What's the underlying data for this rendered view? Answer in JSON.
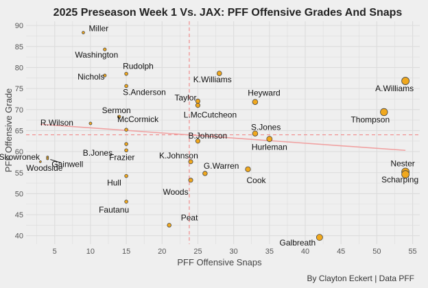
{
  "chart_data": {
    "type": "scatter",
    "title": "2025 Preseason Week 1 Vs. JAX: PFF Offensive Grades And Snaps",
    "xlabel": "PFF Offensive Snaps",
    "ylabel": "PFF Offensive Grade",
    "caption": "By Clayton Eckert | Data PFF",
    "xlim": [
      1,
      56
    ],
    "ylim": [
      38,
      91
    ],
    "xticks": [
      5,
      10,
      15,
      20,
      25,
      30,
      35,
      40,
      45,
      50,
      55
    ],
    "yticks": [
      40,
      45,
      50,
      55,
      60,
      65,
      70,
      75,
      80,
      85,
      90
    ],
    "grid": true,
    "mean_x": 23.8,
    "mean_y": 64.0,
    "trend_line": {
      "x": [
        3,
        54
      ],
      "y": [
        66.5,
        60.3
      ]
    },
    "colors": {
      "point_fill": "#f0a81e",
      "point_stroke": "#444444",
      "reference_line": "#f08a8a",
      "trend_line": "#f0a0a0",
      "grid": "#dcdcdc",
      "background": "#efefef"
    },
    "points": [
      {
        "name": "Miller",
        "x": 9,
        "y": 88.3
      },
      {
        "name": "Washington",
        "x": 12,
        "y": 84.3
      },
      {
        "name": "Nichols",
        "x": 12,
        "y": 78.1
      },
      {
        "name": "Rudolph",
        "x": 15,
        "y": 78.5
      },
      {
        "name": "S.Anderson",
        "x": 15,
        "y": 75.6
      },
      {
        "name": "K.Williams",
        "x": 28,
        "y": 78.6
      },
      {
        "name": "A.Williams",
        "x": 54,
        "y": 76.8
      },
      {
        "name": "Taylor",
        "x": 25,
        "y": 72.0
      },
      {
        "name": "L.McCutcheon",
        "x": 25,
        "y": 71.0
      },
      {
        "name": "Heyward",
        "x": 33,
        "y": 71.8
      },
      {
        "name": "Sermon",
        "x": 14,
        "y": 68.3
      },
      {
        "name": "Thompson",
        "x": 51,
        "y": 69.4
      },
      {
        "name": "McCormick",
        "x": 15,
        "y": 65.2
      },
      {
        "name": "R.Wilson",
        "x": 10,
        "y": 66.7
      },
      {
        "name": "B.Johnson",
        "x": 25,
        "y": 62.5
      },
      {
        "name": "S.Jones",
        "x": 33,
        "y": 64.3
      },
      {
        "name": "B.Jones",
        "x": 15,
        "y": 61.8
      },
      {
        "name": "Hurleman",
        "x": 35,
        "y": 63.0
      },
      {
        "name": "Skowronek",
        "x": 4,
        "y": 58.7
      },
      {
        "name": "Gainwell",
        "x": 4,
        "y": 58.3
      },
      {
        "name": "Frazier",
        "x": 15,
        "y": 60.3
      },
      {
        "name": "K.Johnson",
        "x": 24,
        "y": 57.6
      },
      {
        "name": "Woodside",
        "x": 3,
        "y": 57.6
      },
      {
        "name": "Nester",
        "x": 54,
        "y": 55.2
      },
      {
        "name": "G.Warren",
        "x": 26,
        "y": 54.8
      },
      {
        "name": "Cook",
        "x": 32,
        "y": 55.8
      },
      {
        "name": "Hull",
        "x": 15,
        "y": 54.2
      },
      {
        "name": "Scharping",
        "x": 54,
        "y": 54.6
      },
      {
        "name": "Woods",
        "x": 24,
        "y": 53.2
      },
      {
        "name": "Fautanu",
        "x": 15,
        "y": 48.1
      },
      {
        "name": "Peat",
        "x": 21,
        "y": 42.5
      },
      {
        "name": "Galbreath",
        "x": 42,
        "y": 39.6
      }
    ]
  }
}
